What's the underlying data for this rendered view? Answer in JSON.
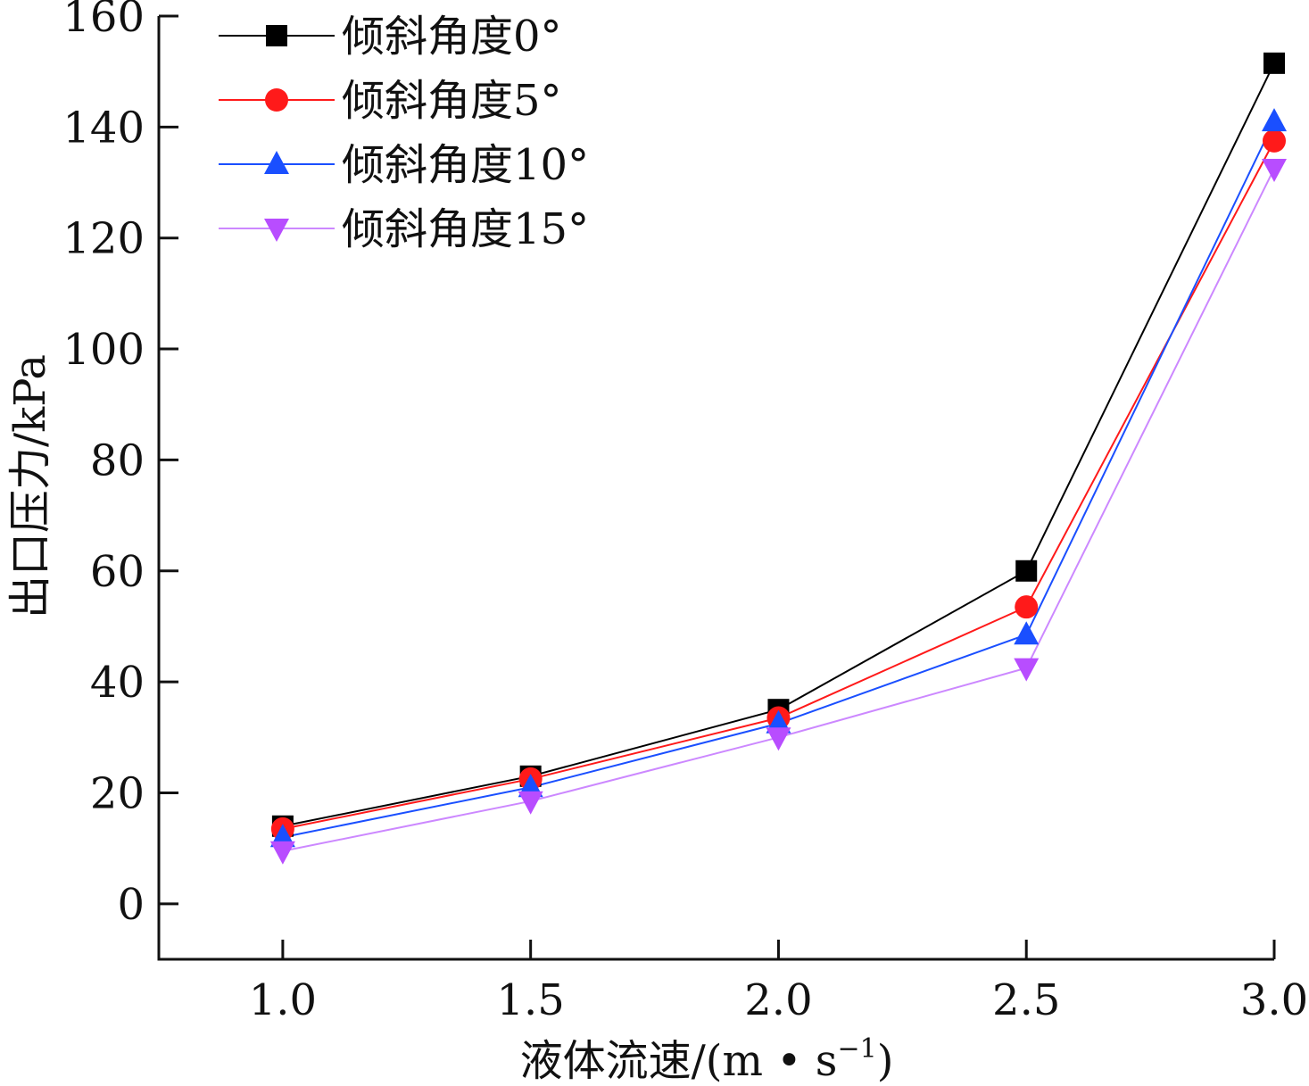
{
  "chart_data": {
    "type": "line",
    "x": [
      1.0,
      1.5,
      2.0,
      2.5,
      3.0
    ],
    "x_tick_labels": [
      "1.0",
      "1.5",
      "2.0",
      "2.5",
      "3.0"
    ],
    "y_ticks": [
      0,
      20,
      40,
      60,
      80,
      100,
      120,
      140,
      160
    ],
    "y_tick_labels": [
      "0",
      "20",
      "40",
      "60",
      "80",
      "100",
      "120",
      "140",
      "160"
    ],
    "xlim": [
      0.75,
      3.0
    ],
    "ylim": [
      -10,
      160
    ],
    "xlabel": "液体流速/(m • s",
    "xlabel_sup": "−1",
    "xlabel_end": ")",
    "ylabel": "出口压力/kPa",
    "legend_position": "top-left",
    "grid": false,
    "series": [
      {
        "name": "倾斜角度0°",
        "marker": "square",
        "color": "#000000",
        "line_color": "#000000",
        "values": [
          14,
          23,
          35,
          60,
          151.5
        ]
      },
      {
        "name": "倾斜角度5°",
        "marker": "circle",
        "color": "#ff1a1a",
        "line_color": "#ff1a1a",
        "values": [
          13.5,
          22.5,
          33.5,
          53.5,
          137.5
        ]
      },
      {
        "name": "倾斜角度10°",
        "marker": "triangle-up",
        "color": "#1a4fff",
        "line_color": "#1a4fff",
        "values": [
          12,
          21,
          32.5,
          48.5,
          141
        ]
      },
      {
        "name": "倾斜角度15°",
        "marker": "triangle-down",
        "color": "#b84dff",
        "line_color": "#cc88ff",
        "values": [
          9.5,
          18.5,
          30,
          42.5,
          132.5
        ]
      }
    ]
  }
}
